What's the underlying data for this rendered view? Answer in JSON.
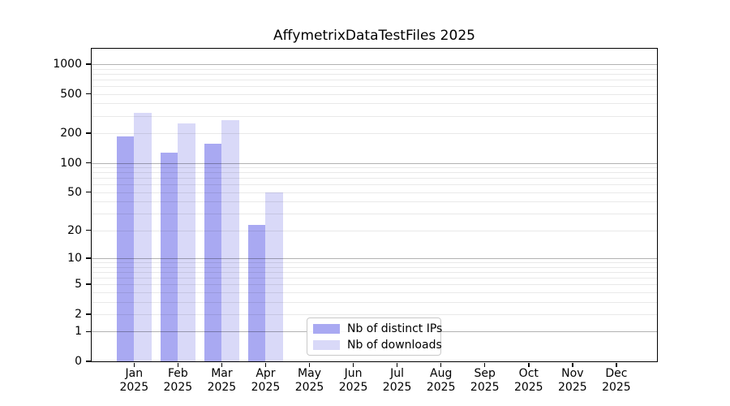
{
  "chart_data": {
    "type": "bar",
    "title": "AffymetrixDataTestFiles 2025",
    "categories": [
      "Jan 2025",
      "Feb 2025",
      "Mar 2025",
      "Apr 2025",
      "May 2025",
      "Jun 2025",
      "Jul 2025",
      "Aug 2025",
      "Sep 2025",
      "Oct 2025",
      "Nov 2025",
      "Dec 2025"
    ],
    "series": [
      {
        "name": "Nb of distinct IPs",
        "color": "#a9a9f2",
        "values": [
          187,
          128,
          156,
          23,
          0,
          0,
          0,
          0,
          0,
          0,
          0,
          0
        ]
      },
      {
        "name": "Nb of downloads",
        "color": "#d9d9f8",
        "values": [
          320,
          253,
          270,
          50,
          0,
          0,
          0,
          0,
          0,
          0,
          0,
          0
        ]
      }
    ],
    "xlabel": "",
    "ylabel": "",
    "yscale": "log1p",
    "yticks": [
      0,
      1,
      2,
      5,
      10,
      20,
      50,
      100,
      200,
      500,
      1000
    ],
    "ylim": [
      0,
      1430
    ],
    "grid": "horizontal, minor lines at 2-9 per decade, major lines at powers of 10",
    "legend_position": "inside bottom-center",
    "legend_labels": [
      "Nb of distinct IPs",
      "Nb of downloads"
    ]
  },
  "colors": {
    "background": "#ffffff",
    "axis": "#000000",
    "major_grid": "#b3b3b3",
    "minor_grid": "#e9e9e9",
    "legend_border": "#c9c9c9",
    "bar_distinct_ips": "#a9a9f2",
    "bar_downloads": "#d9d9f8"
  }
}
